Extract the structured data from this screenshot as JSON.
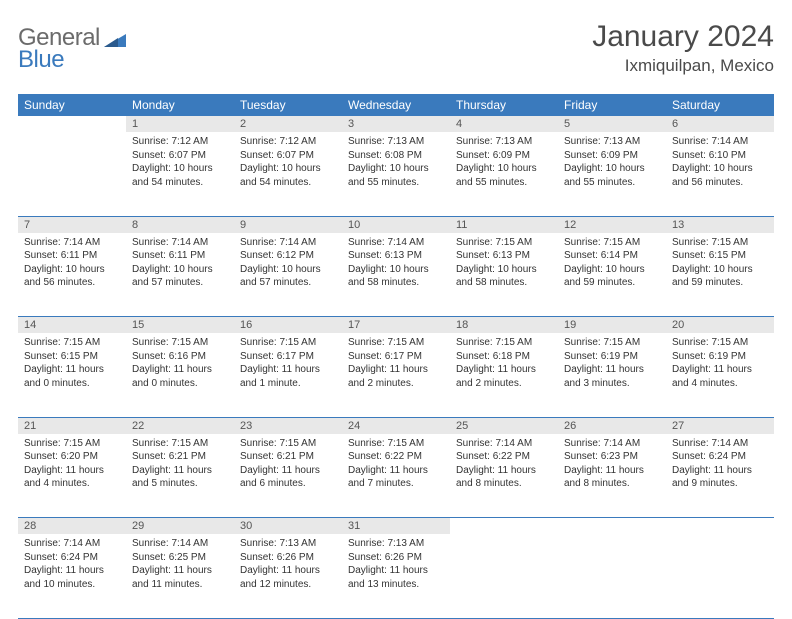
{
  "logo": {
    "part1": "General",
    "part2": "Blue"
  },
  "title": "January 2024",
  "location": "Ixmiquilpan, Mexico",
  "colors": {
    "header_bg": "#3a7abd",
    "header_text": "#ffffff",
    "daynum_bg": "#e8e8e8",
    "body_text": "#333333",
    "rule": "#3a7abd"
  },
  "weekdays": [
    "Sunday",
    "Monday",
    "Tuesday",
    "Wednesday",
    "Thursday",
    "Friday",
    "Saturday"
  ],
  "weeks": [
    {
      "nums": [
        "",
        "1",
        "2",
        "3",
        "4",
        "5",
        "6"
      ],
      "cells": [
        {
          "sunrise": "",
          "sunset": "",
          "daylight": ""
        },
        {
          "sunrise": "Sunrise: 7:12 AM",
          "sunset": "Sunset: 6:07 PM",
          "daylight": "Daylight: 10 hours and 54 minutes."
        },
        {
          "sunrise": "Sunrise: 7:12 AM",
          "sunset": "Sunset: 6:07 PM",
          "daylight": "Daylight: 10 hours and 54 minutes."
        },
        {
          "sunrise": "Sunrise: 7:13 AM",
          "sunset": "Sunset: 6:08 PM",
          "daylight": "Daylight: 10 hours and 55 minutes."
        },
        {
          "sunrise": "Sunrise: 7:13 AM",
          "sunset": "Sunset: 6:09 PM",
          "daylight": "Daylight: 10 hours and 55 minutes."
        },
        {
          "sunrise": "Sunrise: 7:13 AM",
          "sunset": "Sunset: 6:09 PM",
          "daylight": "Daylight: 10 hours and 55 minutes."
        },
        {
          "sunrise": "Sunrise: 7:14 AM",
          "sunset": "Sunset: 6:10 PM",
          "daylight": "Daylight: 10 hours and 56 minutes."
        }
      ]
    },
    {
      "nums": [
        "7",
        "8",
        "9",
        "10",
        "11",
        "12",
        "13"
      ],
      "cells": [
        {
          "sunrise": "Sunrise: 7:14 AM",
          "sunset": "Sunset: 6:11 PM",
          "daylight": "Daylight: 10 hours and 56 minutes."
        },
        {
          "sunrise": "Sunrise: 7:14 AM",
          "sunset": "Sunset: 6:11 PM",
          "daylight": "Daylight: 10 hours and 57 minutes."
        },
        {
          "sunrise": "Sunrise: 7:14 AM",
          "sunset": "Sunset: 6:12 PM",
          "daylight": "Daylight: 10 hours and 57 minutes."
        },
        {
          "sunrise": "Sunrise: 7:14 AM",
          "sunset": "Sunset: 6:13 PM",
          "daylight": "Daylight: 10 hours and 58 minutes."
        },
        {
          "sunrise": "Sunrise: 7:15 AM",
          "sunset": "Sunset: 6:13 PM",
          "daylight": "Daylight: 10 hours and 58 minutes."
        },
        {
          "sunrise": "Sunrise: 7:15 AM",
          "sunset": "Sunset: 6:14 PM",
          "daylight": "Daylight: 10 hours and 59 minutes."
        },
        {
          "sunrise": "Sunrise: 7:15 AM",
          "sunset": "Sunset: 6:15 PM",
          "daylight": "Daylight: 10 hours and 59 minutes."
        }
      ]
    },
    {
      "nums": [
        "14",
        "15",
        "16",
        "17",
        "18",
        "19",
        "20"
      ],
      "cells": [
        {
          "sunrise": "Sunrise: 7:15 AM",
          "sunset": "Sunset: 6:15 PM",
          "daylight": "Daylight: 11 hours and 0 minutes."
        },
        {
          "sunrise": "Sunrise: 7:15 AM",
          "sunset": "Sunset: 6:16 PM",
          "daylight": "Daylight: 11 hours and 0 minutes."
        },
        {
          "sunrise": "Sunrise: 7:15 AM",
          "sunset": "Sunset: 6:17 PM",
          "daylight": "Daylight: 11 hours and 1 minute."
        },
        {
          "sunrise": "Sunrise: 7:15 AM",
          "sunset": "Sunset: 6:17 PM",
          "daylight": "Daylight: 11 hours and 2 minutes."
        },
        {
          "sunrise": "Sunrise: 7:15 AM",
          "sunset": "Sunset: 6:18 PM",
          "daylight": "Daylight: 11 hours and 2 minutes."
        },
        {
          "sunrise": "Sunrise: 7:15 AM",
          "sunset": "Sunset: 6:19 PM",
          "daylight": "Daylight: 11 hours and 3 minutes."
        },
        {
          "sunrise": "Sunrise: 7:15 AM",
          "sunset": "Sunset: 6:19 PM",
          "daylight": "Daylight: 11 hours and 4 minutes."
        }
      ]
    },
    {
      "nums": [
        "21",
        "22",
        "23",
        "24",
        "25",
        "26",
        "27"
      ],
      "cells": [
        {
          "sunrise": "Sunrise: 7:15 AM",
          "sunset": "Sunset: 6:20 PM",
          "daylight": "Daylight: 11 hours and 4 minutes."
        },
        {
          "sunrise": "Sunrise: 7:15 AM",
          "sunset": "Sunset: 6:21 PM",
          "daylight": "Daylight: 11 hours and 5 minutes."
        },
        {
          "sunrise": "Sunrise: 7:15 AM",
          "sunset": "Sunset: 6:21 PM",
          "daylight": "Daylight: 11 hours and 6 minutes."
        },
        {
          "sunrise": "Sunrise: 7:15 AM",
          "sunset": "Sunset: 6:22 PM",
          "daylight": "Daylight: 11 hours and 7 minutes."
        },
        {
          "sunrise": "Sunrise: 7:14 AM",
          "sunset": "Sunset: 6:22 PM",
          "daylight": "Daylight: 11 hours and 8 minutes."
        },
        {
          "sunrise": "Sunrise: 7:14 AM",
          "sunset": "Sunset: 6:23 PM",
          "daylight": "Daylight: 11 hours and 8 minutes."
        },
        {
          "sunrise": "Sunrise: 7:14 AM",
          "sunset": "Sunset: 6:24 PM",
          "daylight": "Daylight: 11 hours and 9 minutes."
        }
      ]
    },
    {
      "nums": [
        "28",
        "29",
        "30",
        "31",
        "",
        "",
        ""
      ],
      "cells": [
        {
          "sunrise": "Sunrise: 7:14 AM",
          "sunset": "Sunset: 6:24 PM",
          "daylight": "Daylight: 11 hours and 10 minutes."
        },
        {
          "sunrise": "Sunrise: 7:14 AM",
          "sunset": "Sunset: 6:25 PM",
          "daylight": "Daylight: 11 hours and 11 minutes."
        },
        {
          "sunrise": "Sunrise: 7:13 AM",
          "sunset": "Sunset: 6:26 PM",
          "daylight": "Daylight: 11 hours and 12 minutes."
        },
        {
          "sunrise": "Sunrise: 7:13 AM",
          "sunset": "Sunset: 6:26 PM",
          "daylight": "Daylight: 11 hours and 13 minutes."
        },
        {
          "sunrise": "",
          "sunset": "",
          "daylight": ""
        },
        {
          "sunrise": "",
          "sunset": "",
          "daylight": ""
        },
        {
          "sunrise": "",
          "sunset": "",
          "daylight": ""
        }
      ]
    }
  ]
}
